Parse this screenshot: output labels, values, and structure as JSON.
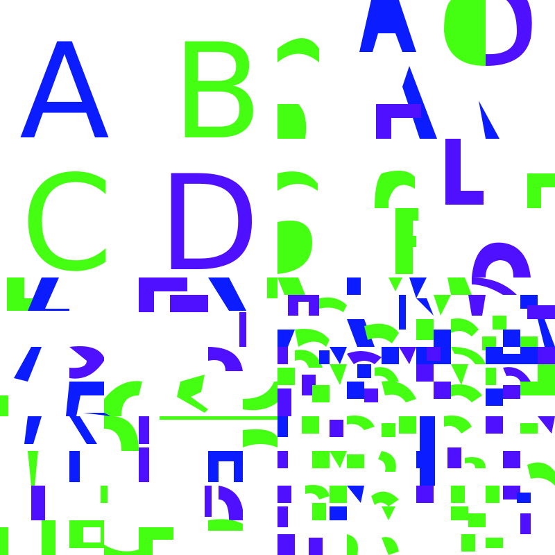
{
  "colors": {
    "blue": "#0b1cff",
    "green": "#45ff12",
    "purple": "#4e10ff",
    "bg": "#ffffff"
  },
  "tiles": {
    "top_left": {
      "A": "A",
      "B": "B",
      "C": "C",
      "D": "D"
    }
  }
}
